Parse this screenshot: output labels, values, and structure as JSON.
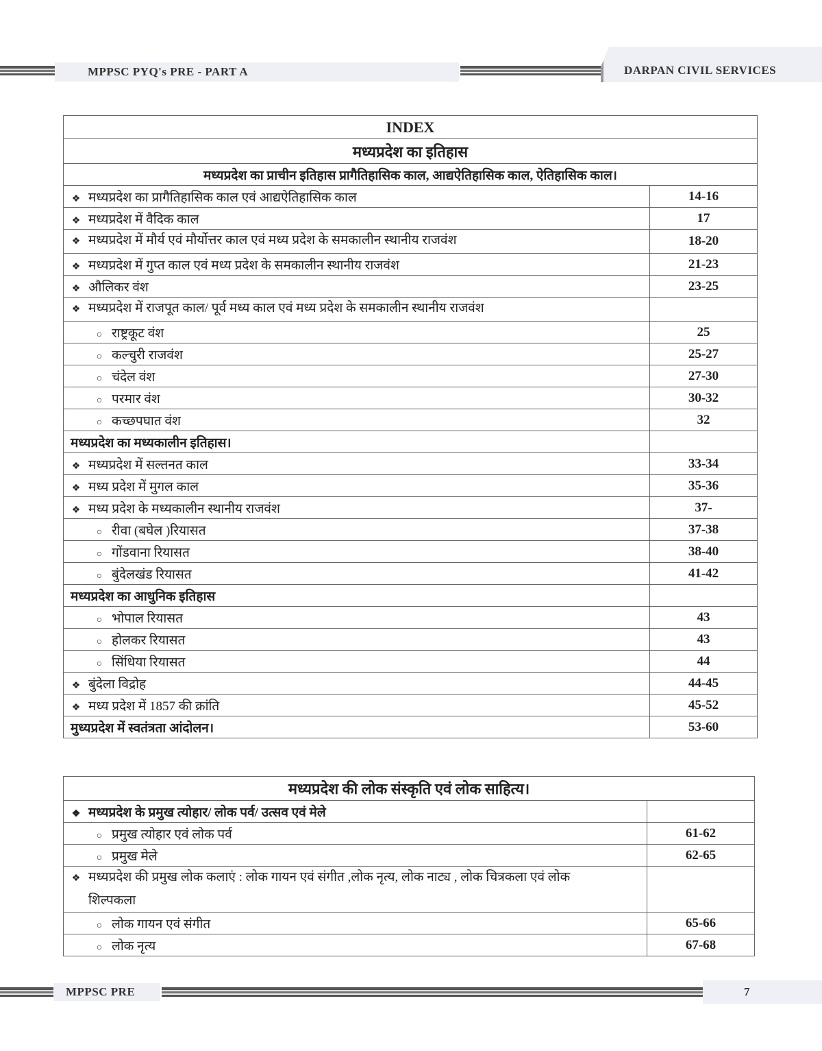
{
  "header": {
    "left_title": "MPPSC PYQ's PRE - PART A",
    "right_title": "DARPAN CIVIL SERVICES"
  },
  "footer": {
    "label": "MPPSC PRE",
    "page_number": "7"
  },
  "index_table": {
    "title": "INDEX",
    "section_title": "मध्यप्रदेश का इतिहास",
    "subheader": "मध्यप्रदेश का प्राचीन इतिहास प्रागैतिहासिक काल, आद्यऐतिहासिक काल, ऐतिहासिक काल।",
    "rows": [
      {
        "type": "bullet",
        "text": "मध्यप्रदेश का प्रागैतिहासिक काल एवं आद्यऐतिहासिक काल",
        "page": "14-16"
      },
      {
        "type": "bullet",
        "text": "मध्यप्रदेश में वैदिक काल",
        "page": "17"
      },
      {
        "type": "bullet",
        "text": "मध्यप्रदेश में मौर्य एवं मौर्योत्तर काल एवं मध्य प्रदेश के समकालीन स्थानीय राजवंश",
        "page": "18-20"
      },
      {
        "type": "bullet",
        "text": "मध्यप्रदेश में गुप्त काल एवं मध्य प्रदेश के समकालीन स्थानीय राजवंश",
        "page": "21-23"
      },
      {
        "type": "bullet",
        "text": "औलिकर वंश",
        "page": "23-25"
      },
      {
        "type": "bullet",
        "text": "मध्यप्रदेश में राजपूत काल/ पूर्व मध्य काल एवं मध्य प्रदेश के समकालीन स्थानीय राजवंश",
        "page": ""
      },
      {
        "type": "circle",
        "text": "राष्ट्रकूट वंश",
        "page": "25"
      },
      {
        "type": "circle",
        "text": "कल्चुरी राजवंश",
        "page": "25-27"
      },
      {
        "type": "circle",
        "text": "चंदेल वंश",
        "page": "27-30"
      },
      {
        "type": "circle",
        "text": "परमार वंश",
        "page": "30-32"
      },
      {
        "type": "circle",
        "text": "कच्छपघात वंश",
        "page": "32"
      },
      {
        "type": "section",
        "text": "मध्यप्रदेश का मध्यकालीन इतिहास।",
        "page": ""
      },
      {
        "type": "bullet",
        "text": "मध्यप्रदेश में सल्तनत काल",
        "page": "33-34"
      },
      {
        "type": "bullet",
        "text": "मध्य प्रदेश में मुगल काल",
        "page": "35-36"
      },
      {
        "type": "bullet",
        "text": "मध्य प्रदेश के मध्यकालीन स्थानीय राजवंश",
        "page": "37-"
      },
      {
        "type": "circle",
        "text": "रीवा (बघेल )रियासत",
        "page": "37-38"
      },
      {
        "type": "circle",
        "text": "गोंडवाना रियासत",
        "page": "38-40"
      },
      {
        "type": "circle",
        "text": "बुंदेलखंड रियासत",
        "page": "41-42"
      },
      {
        "type": "section",
        "text": "मध्यप्रदेश का आधुनिक इतिहास",
        "page": ""
      },
      {
        "type": "circle",
        "text": "भोपाल रियासत",
        "page": "43"
      },
      {
        "type": "circle",
        "text": "होलकर रियासत",
        "page": "43"
      },
      {
        "type": "circle",
        "text": "सिंधिया रियासत",
        "page": "44"
      },
      {
        "type": "bullet",
        "text": "बुंदेला विद्रोह",
        "page": "44-45"
      },
      {
        "type": "bullet",
        "text": "मध्य प्रदेश में 1857 की क्रांति",
        "page": "45-52"
      },
      {
        "type": "section",
        "text": "मुध्यप्रदेश में स्वतंत्रता आंदोलन।",
        "page": "53-60"
      }
    ]
  },
  "culture_table": {
    "title": "मध्यप्रदेश की लोक संस्कृति एवं लोक साहित्य।",
    "rows": [
      {
        "type": "bullet-bold",
        "text": "मध्यप्रदेश के प्रमुख त्योहार/ लोक पर्व/ उत्सव एवं मेले",
        "page": ""
      },
      {
        "type": "circle",
        "text": "प्रमुख त्योहार एवं लोक पर्व",
        "page": "61-62"
      },
      {
        "type": "circle",
        "text": "प्रमुख मेले",
        "page": "62-65"
      },
      {
        "type": "bullet",
        "text": "मध्यप्रदेश की प्रमुख लोक कलाएं : लोक गायन एवं संगीत ,लोक नृत्य, लोक नाट्य , लोक चित्रकला एवं लोक शिल्पकला",
        "page": ""
      },
      {
        "type": "circle",
        "text": "लोक गायन एवं संगीत",
        "page": "65-66"
      },
      {
        "type": "circle",
        "text": "लोक नृत्य",
        "page": "67-68"
      }
    ]
  }
}
